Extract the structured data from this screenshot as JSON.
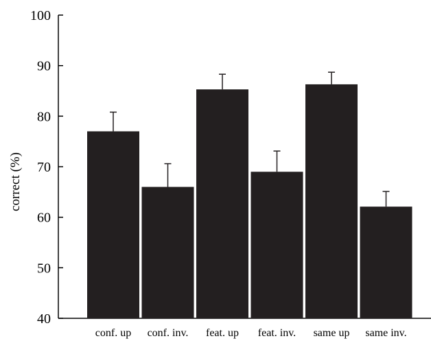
{
  "chart_data": {
    "type": "bar",
    "title": "",
    "xlabel": "",
    "ylabel": "correct (%)",
    "ylim": [
      40,
      100
    ],
    "yticks": [
      40,
      50,
      60,
      70,
      80,
      90,
      100
    ],
    "categories": [
      "conf. up",
      "conf. inv.",
      "feat. up",
      "feat. inv.",
      "same up",
      "same inv."
    ],
    "series": [
      {
        "values": [
          77,
          66,
          85.3,
          69,
          86.3,
          62.1
        ],
        "error": [
          3.8,
          4.6,
          3.0,
          4.1,
          2.4,
          3.0
        ]
      }
    ],
    "grid": false,
    "legend": "none",
    "colors": {
      "bar": "#231f20",
      "axis": "#000000",
      "error_bar": "#231f20"
    }
  }
}
